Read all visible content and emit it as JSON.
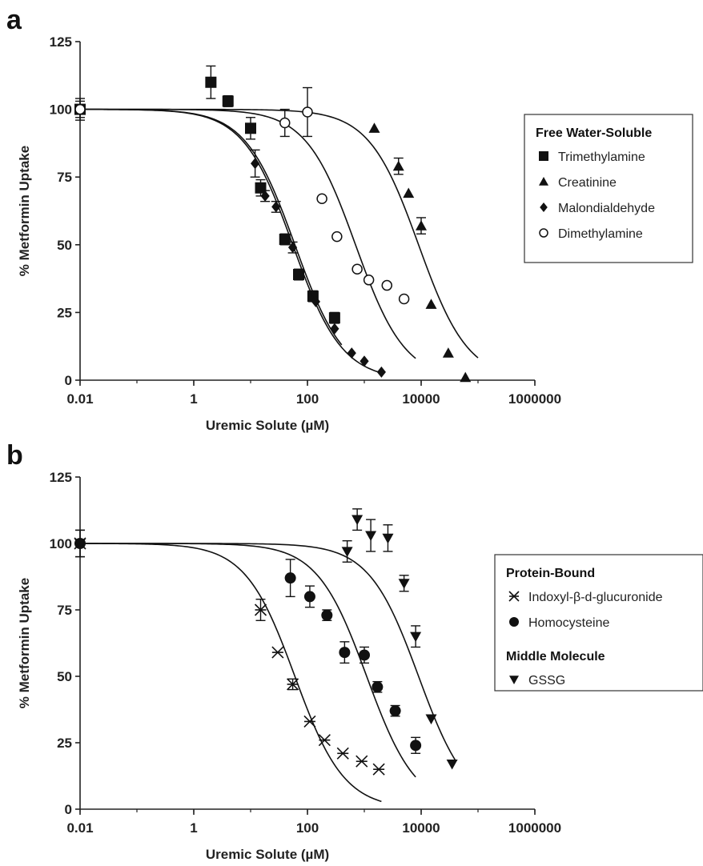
{
  "chart_data": [
    {
      "panel_label": "a",
      "type": "scatter",
      "xscale": "log",
      "xlim": [
        0.01,
        1000000
      ],
      "ylim": [
        0,
        125
      ],
      "xticks": [
        "0.01",
        "1",
        "100",
        "10000",
        "1000000"
      ],
      "yticks": [
        "0",
        "25",
        "50",
        "75",
        "100",
        "125"
      ],
      "xlabel": "Uremic Solute (µM)",
      "ylabel": "% Metformin Uptake",
      "legend": {
        "title": "Free Water-Soluble",
        "position": "right"
      },
      "series": [
        {
          "name": "Trimethylamine",
          "marker": "square",
          "x": [
            0.01,
            2,
            4,
            10,
            15,
            40,
            70,
            125,
            300
          ],
          "y": [
            100,
            110,
            103,
            93,
            71,
            52,
            39,
            31,
            23
          ],
          "err": [
            4,
            6,
            2,
            4,
            3,
            2,
            2,
            2,
            2
          ],
          "curve": {
            "bottom": 0,
            "top": 100,
            "ic50": 60,
            "hill": 1,
            "xmax": 400
          }
        },
        {
          "name": "Creatinine",
          "marker": "triangle",
          "x": [
            1500,
            4000,
            6000,
            10000,
            15000,
            30000,
            60000
          ],
          "y": [
            93,
            79,
            69,
            57,
            28,
            10,
            1
          ],
          "err": [
            0,
            3,
            0,
            3,
            0,
            0,
            0
          ],
          "curve": {
            "bottom": 0,
            "top": 100,
            "ic50": 9000,
            "hill": 1,
            "xmax": 100000
          }
        },
        {
          "name": "Malondialdehyde",
          "marker": "diamond",
          "x": [
            0.01,
            12,
            18,
            28,
            55,
            140,
            300,
            600,
            1000,
            2000
          ],
          "y": [
            100,
            80,
            68,
            64,
            49,
            29,
            19,
            10,
            7,
            3
          ],
          "err": [
            3,
            5,
            2,
            2,
            2,
            0,
            0,
            0,
            0,
            0
          ],
          "curve": {
            "bottom": 0,
            "top": 100,
            "ic50": 55,
            "hill": 1,
            "xmax": 2000
          }
        },
        {
          "name": "Dimethylamine",
          "marker": "circle-open",
          "x": [
            0.01,
            40,
            100,
            180,
            330,
            750,
            1200,
            2500,
            5000
          ],
          "y": [
            100,
            95,
            99,
            67,
            53,
            41,
            37,
            35,
            30
          ],
          "err": [
            0,
            5,
            9,
            0,
            0,
            0,
            0,
            0,
            0
          ],
          "curve": {
            "bottom": 0,
            "top": 100,
            "ic50": 700,
            "hill": 1,
            "xmax": 8000
          }
        }
      ]
    },
    {
      "panel_label": "b",
      "type": "scatter",
      "xscale": "log",
      "xlim": [
        0.01,
        1000000
      ],
      "ylim": [
        0,
        125
      ],
      "xticks": [
        "0.01",
        "1",
        "100",
        "10000",
        "1000000"
      ],
      "yticks": [
        "0",
        "25",
        "50",
        "75",
        "100",
        "125"
      ],
      "xlabel": "Uremic Solute (µM)",
      "ylabel": "% Metformin Uptake",
      "legend": {
        "position": "right",
        "groups": [
          {
            "title": "Protein-Bound",
            "items": [
              "Indoxyl-β-d-glucuronide",
              "Homocysteine"
            ]
          },
          {
            "title": "Middle Molecule",
            "items": [
              "GSSG"
            ]
          }
        ]
      },
      "series": [
        {
          "name": "Indoxyl-β-d-glucuronide",
          "marker": "asterisk",
          "x": [
            0.01,
            15,
            30,
            55,
            110,
            200,
            420,
            900,
            1800
          ],
          "y": [
            100,
            75,
            59,
            47,
            33,
            26,
            21,
            18,
            15
          ],
          "err": [
            5,
            4,
            0,
            2,
            0,
            0,
            0,
            0,
            0
          ],
          "curve": {
            "bottom": 0,
            "top": 100,
            "ic50": 60,
            "hill": 1,
            "xmax": 2000
          }
        },
        {
          "name": "Homocysteine",
          "marker": "circle",
          "x": [
            0.01,
            50,
            110,
            220,
            450,
            1000,
            1700,
            3500,
            8000
          ],
          "y": [
            100,
            87,
            80,
            73,
            59,
            58,
            46,
            37,
            24
          ],
          "err": [
            5,
            7,
            4,
            2,
            4,
            3,
            2,
            2,
            3
          ],
          "curve": {
            "bottom": 0,
            "top": 100,
            "ic50": 1100,
            "hill": 1,
            "xmax": 8000
          }
        },
        {
          "name": "GSSG",
          "marker": "triangle-down",
          "x": [
            0.01,
            500,
            750,
            1300,
            2600,
            5000,
            8000,
            15000,
            35000
          ],
          "y": [
            100,
            97,
            109,
            103,
            102,
            85,
            65,
            34,
            17
          ],
          "err": [
            0,
            4,
            4,
            6,
            5,
            3,
            4,
            0,
            0
          ],
          "curve": {
            "bottom": 0,
            "top": 100,
            "ic50": 9000,
            "hill": 1,
            "xmax": 40000
          }
        }
      ]
    }
  ]
}
